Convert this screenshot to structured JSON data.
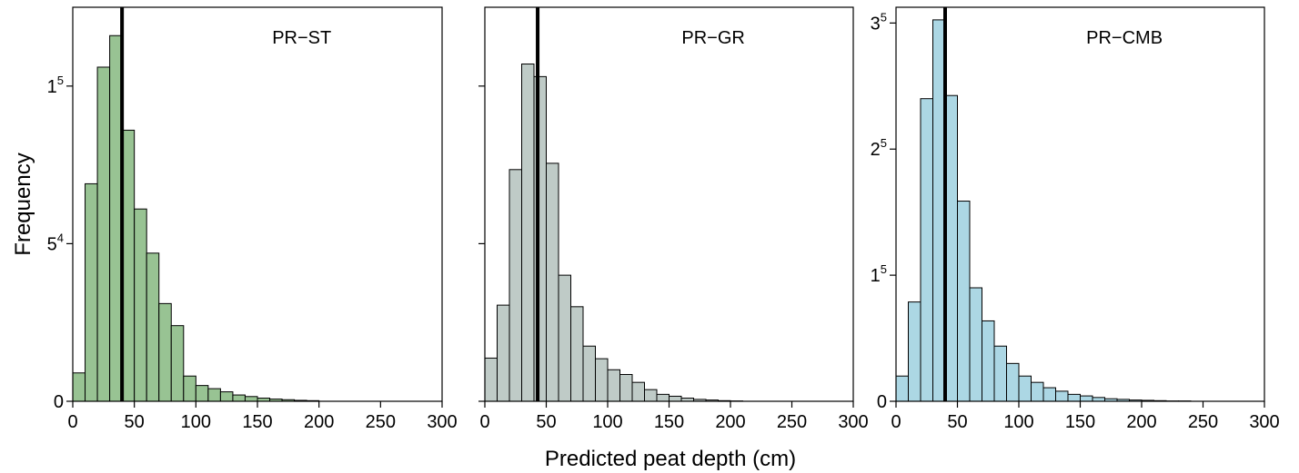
{
  "figure": {
    "ylabel": "Frequency",
    "xlabel": "Predicted peat depth (cm)"
  },
  "colors": {
    "PR-ST": "#98c393",
    "PR-GR": "#bfcbc7",
    "PR-CMB": "#acd7e4",
    "outline": "#000000"
  },
  "chart_data": [
    {
      "type": "bar",
      "title": "PR−ST",
      "color_key": "PR-ST",
      "bin_width": 10,
      "bin_starts": [
        0,
        10,
        20,
        30,
        40,
        50,
        60,
        70,
        80,
        90,
        100,
        110,
        120,
        130,
        140,
        150,
        160,
        170,
        180,
        190
      ],
      "values": [
        0.09,
        0.69,
        1.06,
        1.16,
        0.86,
        0.61,
        0.47,
        0.31,
        0.24,
        0.08,
        0.05,
        0.04,
        0.03,
        0.02,
        0.015,
        0.01,
        0.007,
        0.005,
        0.003,
        0.002
      ],
      "mean_line": 40,
      "xlim": [
        0,
        300
      ],
      "ylim": [
        0,
        1.25
      ],
      "x_ticks": [
        "0",
        "50",
        "100",
        "150",
        "200",
        "250",
        "300"
      ],
      "y_ticks": [
        {
          "value": 0,
          "base": "0",
          "sup": ""
        },
        {
          "value": 0.5,
          "base": "5",
          "sup": "4"
        },
        {
          "value": 1.0,
          "base": "1",
          "sup": "5"
        }
      ]
    },
    {
      "type": "bar",
      "title": "PR−GR",
      "color_key": "PR-GR",
      "bin_width": 10,
      "bin_starts": [
        0,
        10,
        20,
        30,
        40,
        50,
        60,
        70,
        80,
        90,
        100,
        110,
        120,
        130,
        140,
        150,
        160,
        170,
        180,
        190,
        200
      ],
      "values": [
        0.137,
        0.305,
        0.735,
        1.07,
        1.03,
        0.755,
        0.4,
        0.3,
        0.175,
        0.135,
        0.1,
        0.085,
        0.06,
        0.037,
        0.022,
        0.016,
        0.01,
        0.006,
        0.004,
        0.002,
        0.001
      ],
      "mean_line": 43,
      "xlim": [
        0,
        300
      ],
      "ylim": [
        0,
        1.25
      ],
      "x_ticks": [
        "0",
        "50",
        "100",
        "150",
        "200",
        "250",
        "300"
      ],
      "y_ticks": [
        {
          "value": 0,
          "base": "",
          "sup": ""
        },
        {
          "value": 0.5,
          "base": "",
          "sup": ""
        },
        {
          "value": 1.0,
          "base": "",
          "sup": ""
        }
      ]
    },
    {
      "type": "bar",
      "title": "PR−CMB",
      "color_key": "PR-CMB",
      "bin_width": 10,
      "bin_starts": [
        0,
        10,
        20,
        30,
        40,
        50,
        60,
        70,
        80,
        90,
        100,
        110,
        120,
        130,
        140,
        150,
        160,
        170,
        180,
        190,
        200,
        210,
        220,
        230
      ],
      "values": [
        0.08,
        0.315,
        0.96,
        1.21,
        0.97,
        0.635,
        0.36,
        0.255,
        0.175,
        0.12,
        0.08,
        0.06,
        0.043,
        0.032,
        0.022,
        0.017,
        0.012,
        0.008,
        0.006,
        0.004,
        0.003,
        0.002,
        0.001,
        0.001
      ],
      "mean_line": 40,
      "xlim": [
        0,
        300
      ],
      "ylim": [
        0,
        1.25
      ],
      "x_ticks": [
        "0",
        "50",
        "100",
        "150",
        "200",
        "250",
        "300"
      ],
      "y_ticks": [
        {
          "value": 0,
          "base": "0",
          "sup": ""
        },
        {
          "value": 0.4,
          "base": "1",
          "sup": "5"
        },
        {
          "value": 0.8,
          "base": "2",
          "sup": "5"
        },
        {
          "value": 1.2,
          "base": "3",
          "sup": "5"
        }
      ]
    }
  ]
}
